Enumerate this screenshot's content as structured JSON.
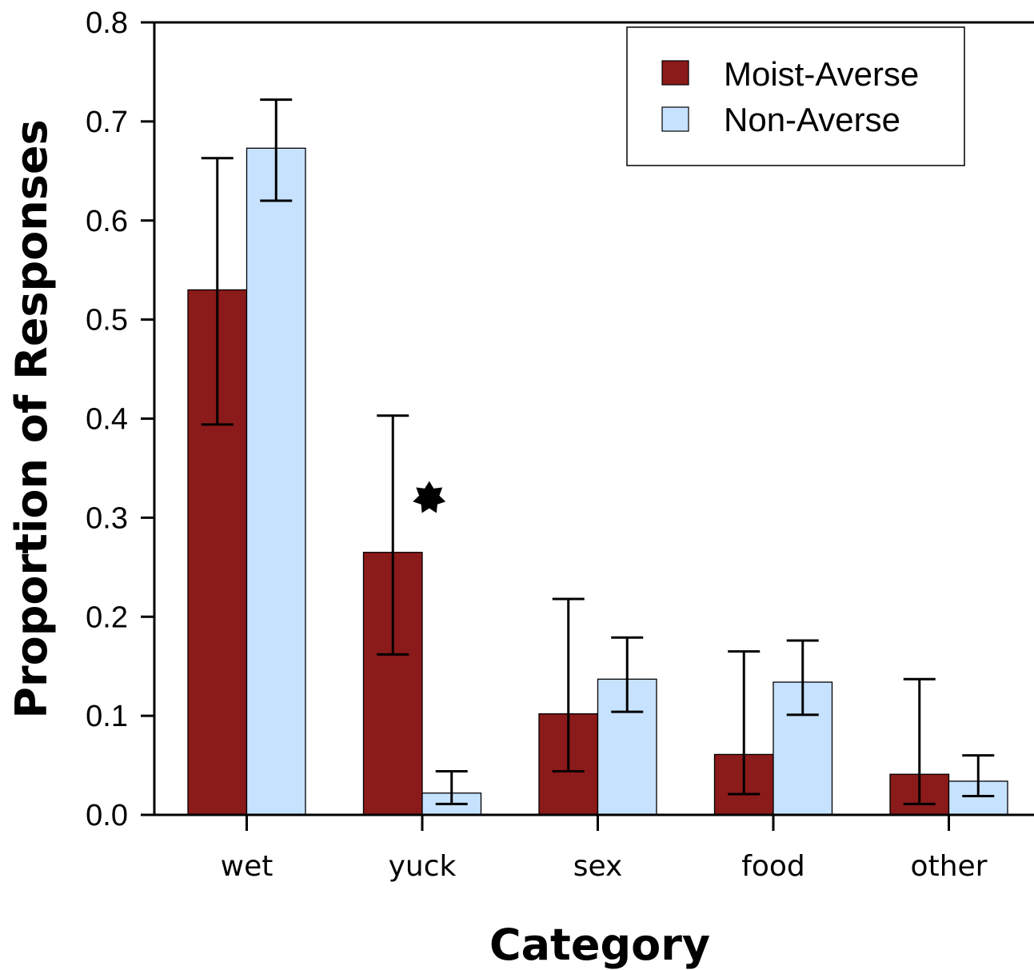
{
  "chart_data": {
    "type": "bar",
    "xlabel": "Category",
    "ylabel": "Proportion of Responses",
    "categories": [
      "wet",
      "yuck",
      "sex",
      "food",
      "other"
    ],
    "ylim": [
      0,
      0.8
    ],
    "yticks": [
      "0.0",
      "0.1",
      "0.2",
      "0.3",
      "0.4",
      "0.5",
      "0.6",
      "0.7",
      "0.8"
    ],
    "series": [
      {
        "name": "Moist-Averse",
        "color": "#8B1A1A",
        "values": [
          0.53,
          0.265,
          0.102,
          0.061,
          0.041
        ],
        "err_low": [
          0.394,
          0.162,
          0.044,
          0.021,
          0.011
        ],
        "err_high": [
          0.663,
          0.403,
          0.218,
          0.165,
          0.137
        ]
      },
      {
        "name": "Non-Averse",
        "color": "#C6E2FF",
        "values": [
          0.673,
          0.022,
          0.137,
          0.134,
          0.034
        ],
        "err_low": [
          0.62,
          0.011,
          0.104,
          0.101,
          0.019
        ],
        "err_high": [
          0.722,
          0.044,
          0.179,
          0.176,
          0.06
        ]
      }
    ],
    "annotations": [
      {
        "category": "yuck",
        "symbol": "star",
        "y": 0.32
      }
    ],
    "legend_position": "top-right",
    "grid": false
  }
}
